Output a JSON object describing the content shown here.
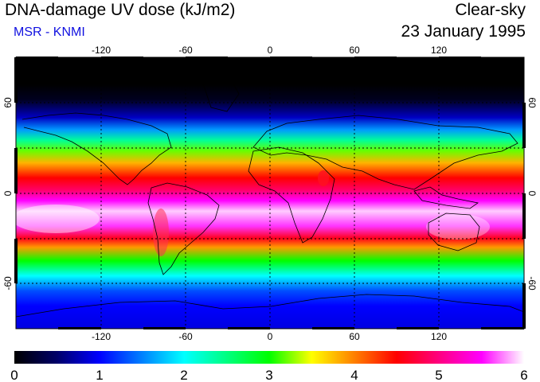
{
  "header": {
    "title": "DNA-damage UV dose (kJ/m2)",
    "subtitle": "MSR - KNMI",
    "sky_condition": "Clear-sky",
    "date": "23 January 1995"
  },
  "map": {
    "lon_ticks_top": [
      "-120",
      "-60",
      "0",
      "60",
      "120"
    ],
    "lon_ticks_bottom": [
      "-120",
      "-60",
      "0",
      "60",
      "120"
    ],
    "lat_ticks_left": [
      "60",
      "0",
      "-60"
    ],
    "lat_ticks_right": [
      "60",
      "0",
      "-60"
    ],
    "lon_range": [
      -180,
      180
    ],
    "lat_range": [
      -90,
      90
    ],
    "zonal_dose_profile": [
      {
        "lat": 90,
        "dose": 0.0
      },
      {
        "lat": 72,
        "dose": 0.0
      },
      {
        "lat": 62,
        "dose": 0.15
      },
      {
        "lat": 50,
        "dose": 0.8
      },
      {
        "lat": 42,
        "dose": 1.6
      },
      {
        "lat": 35,
        "dose": 2.4
      },
      {
        "lat": 28,
        "dose": 3.2
      },
      {
        "lat": 20,
        "dose": 3.8
      },
      {
        "lat": 10,
        "dose": 4.5
      },
      {
        "lat": 2,
        "dose": 4.9
      },
      {
        "lat": -5,
        "dose": 5.5
      },
      {
        "lat": -12,
        "dose": 5.9
      },
      {
        "lat": -22,
        "dose": 5.6
      },
      {
        "lat": -30,
        "dose": 4.6
      },
      {
        "lat": -36,
        "dose": 3.9
      },
      {
        "lat": -45,
        "dose": 3.0
      },
      {
        "lat": -55,
        "dose": 2.0
      },
      {
        "lat": -65,
        "dose": 1.3
      },
      {
        "lat": -75,
        "dose": 1.0
      },
      {
        "lat": -90,
        "dose": 0.9
      }
    ]
  },
  "colorbar": {
    "min": 0,
    "max": 6,
    "labels": [
      "0",
      "1",
      "2",
      "3",
      "4",
      "5",
      "6"
    ],
    "stops": [
      {
        "v": 0.0,
        "color": "#000000"
      },
      {
        "v": 0.5,
        "color": "#000068"
      },
      {
        "v": 1.0,
        "color": "#0000ff"
      },
      {
        "v": 1.5,
        "color": "#0080ff"
      },
      {
        "v": 2.0,
        "color": "#00ffff"
      },
      {
        "v": 2.5,
        "color": "#00ff80"
      },
      {
        "v": 3.0,
        "color": "#00ff00"
      },
      {
        "v": 3.5,
        "color": "#ffff00"
      },
      {
        "v": 4.0,
        "color": "#ff8000"
      },
      {
        "v": 4.5,
        "color": "#ff0000"
      },
      {
        "v": 5.0,
        "color": "#ff0080"
      },
      {
        "v": 5.5,
        "color": "#ff00ff"
      },
      {
        "v": 6.0,
        "color": "#ffffff"
      }
    ]
  }
}
